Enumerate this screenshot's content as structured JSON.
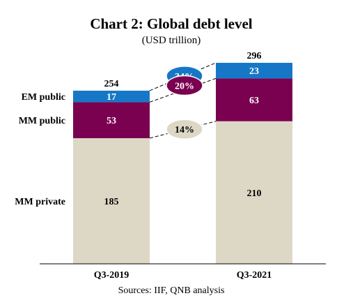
{
  "chart_data": {
    "type": "bar",
    "stacked": true,
    "title": "Chart 2: Global debt level",
    "subtitle": "(USD trillion)",
    "categories": [
      "Q3-2019",
      "Q3-2021"
    ],
    "series": [
      {
        "name": "MM private",
        "values": [
          185,
          210
        ],
        "color": "#ddd8c6",
        "label_color": "#000000"
      },
      {
        "name": "MM public",
        "values": [
          53,
          63
        ],
        "color": "#7a0150",
        "label_color": "#ffffff"
      },
      {
        "name": "EM public",
        "values": [
          17,
          23
        ],
        "color": "#1777c7",
        "label_color": "#ffffff"
      }
    ],
    "totals": [
      254,
      296
    ],
    "growth_labels": [
      {
        "series": "EM public",
        "text": "34%",
        "color": "#1777c7",
        "text_color": "#ffffff"
      },
      {
        "series": "MM public",
        "text": "20%",
        "color": "#7a0150",
        "text_color": "#ffffff"
      },
      {
        "series": "MM private",
        "text": "14%",
        "color": "#ddd8c6",
        "text_color": "#000000"
      }
    ],
    "ylim": [
      0,
      296
    ],
    "grid": false,
    "legend": "left"
  },
  "source": "Sources: IIF, QNB analysis"
}
